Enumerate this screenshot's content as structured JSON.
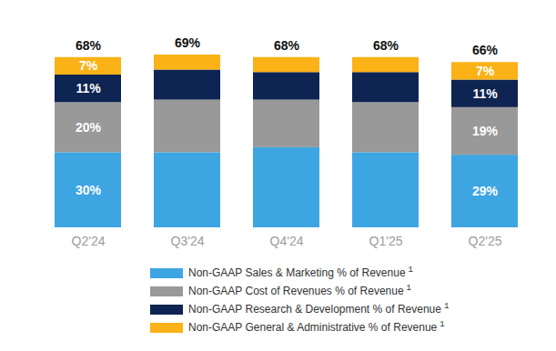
{
  "chart_data": {
    "type": "bar",
    "stacked": true,
    "data_labels": true,
    "tick_labels": "x",
    "legend": "bottom",
    "legend_superscript": "1",
    "categories": [
      "Q2'24",
      "Q3'24",
      "Q4'24",
      "Q1'25",
      "Q2'25"
    ],
    "series": [
      {
        "name": "Non-GAAP Sales & Marketing % of Revenue",
        "color": "#3ea5e3",
        "values": [
          30,
          30,
          32,
          30,
          29
        ],
        "value_labels": [
          "30%",
          null,
          null,
          null,
          "29%"
        ]
      },
      {
        "name": "Non-GAAP Cost of Revenues % of Revenue",
        "color": "#999999",
        "values": [
          20,
          21,
          19,
          20,
          19
        ],
        "value_labels": [
          "20%",
          null,
          null,
          null,
          "19%"
        ]
      },
      {
        "name": "Non-GAAP Research & Development % of Revenue",
        "color": "#0e2452",
        "values": [
          11,
          12,
          11,
          12,
          11
        ],
        "value_labels": [
          "11%",
          null,
          null,
          null,
          "11%"
        ]
      },
      {
        "name": "Non-GAAP General & Administrative % of Revenue",
        "color": "#fbb217",
        "values": [
          7,
          6,
          6,
          6,
          7
        ],
        "value_labels": [
          "7%",
          null,
          null,
          null,
          "7%"
        ]
      }
    ],
    "totals": [
      68,
      69,
      68,
      68,
      66
    ],
    "total_labels": [
      "68%",
      "69%",
      "68%",
      "68%",
      "66%"
    ]
  }
}
